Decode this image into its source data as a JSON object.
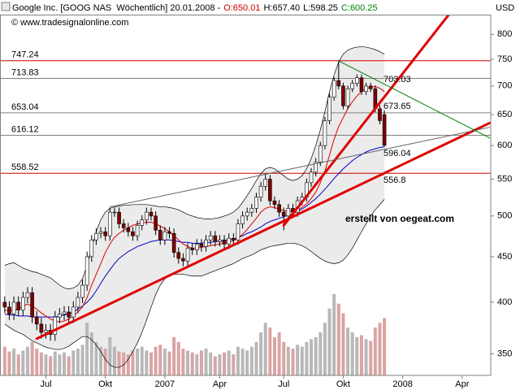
{
  "chart_data": {
    "type": "candlestick",
    "title_parts": [
      {
        "text": "Google Inc. [GOOG NAS  Wöchentlich] 20.01.2008 -",
        "color": "#000000"
      },
      {
        "text": "O:650.01",
        "color": "#cc0000"
      },
      {
        "text": "H:657.40",
        "color": "#000000"
      },
      {
        "text": "L:598.25",
        "color": "#000000"
      },
      {
        "text": "C:600.25",
        "color": "#008000"
      }
    ],
    "copyright": "© www.tradesignalonline.com",
    "y_axis_title": "USD",
    "log_scale": true,
    "ylim": [
      331,
      842
    ],
    "yticks": [
      350,
      400,
      450,
      500,
      550,
      600,
      650,
      700,
      750,
      800
    ],
    "categories": [
      null,
      null,
      null,
      null,
      null,
      null,
      null,
      null,
      null,
      "Jul",
      null,
      null,
      null,
      null,
      null,
      null,
      null,
      null,
      null,
      null,
      null,
      null,
      "Okt",
      null,
      null,
      null,
      null,
      null,
      null,
      null,
      null,
      null,
      null,
      null,
      null,
      "2007",
      null,
      null,
      null,
      null,
      null,
      null,
      null,
      null,
      null,
      null,
      null,
      "Apr",
      null,
      null,
      null,
      null,
      null,
      null,
      null,
      null,
      null,
      null,
      null,
      null,
      null,
      "Jul",
      null,
      null,
      null,
      null,
      null,
      null,
      null,
      null,
      null,
      null,
      null,
      null,
      "Okt",
      null,
      null,
      null,
      null,
      null,
      null,
      null,
      null,
      null,
      null,
      null,
      null,
      "2008",
      null,
      null,
      null,
      null,
      null,
      null,
      null,
      null,
      null,
      null,
      null,
      null,
      "Apr",
      null,
      null,
      null,
      null,
      null
    ],
    "up_color": "#ffffff",
    "down_color": "#800000",
    "open": [
      400,
      395,
      388,
      400,
      392,
      405,
      410,
      385,
      378,
      370,
      372,
      368,
      385,
      388,
      390,
      385,
      395,
      405,
      418,
      450,
      470,
      478,
      480,
      475,
      505,
      505,
      490,
      485,
      480,
      475,
      488,
      495,
      505,
      500,
      482,
      470,
      480,
      478,
      455,
      448,
      445,
      460,
      458,
      465,
      462,
      470,
      475,
      468,
      470,
      465,
      472,
      470,
      490,
      500,
      505,
      510,
      525,
      540,
      550,
      520,
      515,
      505,
      500,
      510,
      505,
      520,
      525,
      545,
      560,
      575,
      600,
      640,
      680,
      710,
      700,
      665,
      695,
      705,
      715,
      690,
      700,
      695,
      660,
      650.01,
      null,
      null,
      null,
      null,
      null,
      null,
      null,
      null,
      null,
      null,
      null,
      null,
      null,
      null,
      null,
      null,
      null,
      null,
      null,
      null,
      null,
      null
    ],
    "high": [
      406,
      401,
      406,
      406,
      411,
      416,
      416,
      391,
      384,
      378,
      378,
      391,
      394,
      396,
      396,
      401,
      411,
      424,
      456,
      476,
      484,
      486,
      486,
      511,
      511,
      511,
      496,
      491,
      486,
      494,
      501,
      511,
      511,
      506,
      488,
      486,
      486,
      484,
      461,
      454,
      466,
      466,
      471,
      471,
      476,
      481,
      481,
      476,
      476,
      478,
      478,
      496,
      506,
      511,
      516,
      531,
      546,
      558,
      556,
      526,
      521,
      511,
      516,
      516,
      526,
      531,
      551,
      566,
      581,
      606,
      646,
      686,
      716,
      747,
      706,
      701,
      711,
      721,
      721,
      706,
      706,
      701,
      666,
      657.4,
      null,
      null,
      null,
      null,
      null,
      null,
      null,
      null,
      null,
      null,
      null,
      null,
      null,
      null,
      null,
      null,
      null,
      null,
      null,
      null,
      null,
      null
    ],
    "low": [
      389,
      382,
      382,
      386,
      386,
      399,
      379,
      372,
      364,
      364,
      362,
      362,
      379,
      382,
      379,
      379,
      389,
      399,
      412,
      444,
      464,
      472,
      469,
      469,
      499,
      484,
      479,
      474,
      469,
      469,
      482,
      489,
      494,
      476,
      464,
      464,
      472,
      449,
      442,
      439,
      439,
      452,
      452,
      456,
      456,
      464,
      462,
      462,
      459,
      459,
      464,
      464,
      484,
      494,
      499,
      504,
      519,
      534,
      514,
      509,
      499,
      482,
      494,
      499,
      499,
      514,
      519,
      539,
      554,
      569,
      594,
      634,
      674,
      694,
      659,
      659,
      689,
      699,
      684,
      684,
      689,
      654,
      634,
      598.25,
      null,
      null,
      null,
      null,
      null,
      null,
      null,
      null,
      null,
      null,
      null,
      null,
      null,
      null,
      null,
      null,
      null,
      null,
      null,
      null,
      null,
      null
    ],
    "close": [
      395,
      388,
      400,
      392,
      405,
      410,
      385,
      378,
      370,
      372,
      368,
      385,
      388,
      390,
      385,
      395,
      405,
      418,
      450,
      470,
      478,
      480,
      475,
      505,
      505,
      490,
      485,
      480,
      475,
      488,
      495,
      505,
      500,
      482,
      470,
      480,
      478,
      455,
      448,
      445,
      460,
      458,
      465,
      462,
      470,
      475,
      468,
      470,
      465,
      472,
      470,
      490,
      500,
      505,
      510,
      525,
      540,
      550,
      520,
      515,
      505,
      500,
      510,
      505,
      520,
      525,
      545,
      560,
      575,
      600,
      640,
      680,
      710,
      700,
      665,
      695,
      705,
      715,
      690,
      700,
      695,
      660,
      640,
      600.25,
      null,
      null,
      null,
      null,
      null,
      null,
      null,
      null,
      null,
      null,
      null,
      null,
      null,
      null,
      null,
      null,
      null,
      null,
      null,
      null,
      null,
      null
    ],
    "volume": [
      30,
      25,
      28,
      22,
      26,
      30,
      35,
      28,
      24,
      22,
      20,
      25,
      22,
      24,
      20,
      26,
      28,
      32,
      55,
      45,
      35,
      30,
      28,
      40,
      30,
      25,
      24,
      22,
      26,
      28,
      30,
      26,
      24,
      30,
      32,
      28,
      25,
      40,
      35,
      28,
      26,
      24,
      22,
      26,
      28,
      24,
      20,
      22,
      24,
      26,
      22,
      30,
      28,
      26,
      30,
      35,
      45,
      55,
      50,
      40,
      45,
      35,
      30,
      28,
      32,
      30,
      35,
      38,
      40,
      45,
      55,
      70,
      85,
      75,
      65,
      50,
      45,
      40,
      42,
      38,
      36,
      50,
      55,
      60,
      null,
      null,
      null,
      null,
      null,
      null,
      null,
      null,
      null,
      null,
      null,
      null,
      null,
      null,
      null,
      null,
      null,
      null,
      null,
      null,
      null,
      null
    ],
    "volume_up_color": "#b8b8b8",
    "volume_down_color": "#dba3a3",
    "band_fill": "#ebebeb",
    "band": [
      {
        "color": "#000000",
        "values": [
          440,
          442,
          443,
          440,
          437,
          435,
          433,
          432,
          430,
          428,
          426,
          422,
          418,
          415,
          414,
          415,
          418,
          425,
          440,
          460,
          480,
          495,
          505,
          510,
          512,
          513,
          514,
          514,
          515,
          515,
          515,
          515,
          514,
          513,
          512,
          512,
          511,
          510,
          508,
          505,
          502,
          500,
          498,
          497,
          496,
          496,
          497,
          498,
          500,
          502,
          505,
          510,
          518,
          527,
          537,
          548,
          558,
          565,
          567,
          565,
          560,
          555,
          550,
          548,
          550,
          555,
          565,
          580,
          600,
          625,
          655,
          690,
          720,
          745,
          760,
          768,
          772,
          774,
          775,
          774,
          772,
          769,
          765,
          760,
          null,
          null,
          null,
          null,
          null,
          null,
          null,
          null,
          null,
          null,
          null,
          null,
          null,
          null,
          null,
          null,
          null,
          null,
          null,
          null,
          null,
          null
        ]
      },
      {
        "color": "#000000",
        "values": [
          378,
          375,
          372,
          370,
          368,
          365,
          362,
          360,
          358,
          356,
          355,
          354,
          354,
          355,
          357,
          360,
          363,
          366,
          366,
          363,
          358,
          352,
          345,
          340,
          338,
          338,
          340,
          345,
          352,
          360,
          370,
          382,
          395,
          408,
          418,
          425,
          428,
          430,
          430,
          430,
          429,
          428,
          428,
          428,
          430,
          432,
          434,
          436,
          438,
          440,
          442,
          445,
          448,
          450,
          452,
          455,
          458,
          460,
          462,
          463,
          464,
          465,
          466,
          466,
          465,
          463,
          460,
          456,
          452,
          448,
          445,
          443,
          442,
          443,
          446,
          452,
          460,
          470,
          480,
          490,
          500,
          508,
          515,
          522,
          null,
          null,
          null,
          null,
          null,
          null,
          null,
          null,
          null,
          null,
          null,
          null,
          null,
          null,
          null,
          null,
          null,
          null,
          null,
          null,
          null,
          null
        ]
      }
    ],
    "averages": [
      {
        "color": "#0000cc",
        "values": [
          388,
          387,
          387,
          386,
          386,
          386,
          385,
          385,
          385,
          385,
          385,
          385,
          386,
          387,
          388,
          390,
          393,
          396,
          400,
          405,
          412,
          420,
          428,
          435,
          442,
          448,
          452,
          456,
          459,
          462,
          464,
          466,
          468,
          469,
          470,
          470,
          470,
          469,
          468,
          467,
          467,
          466,
          466,
          466,
          467,
          467,
          468,
          468,
          469,
          470,
          471,
          473,
          475,
          478,
          480,
          483,
          486,
          490,
          493,
          495,
          497,
          499,
          501,
          503,
          506,
          509,
          513,
          518,
          523,
          529,
          536,
          543,
          551,
          558,
          565,
          571,
          577,
          582,
          586,
          590,
          593,
          595,
          597,
          598,
          null,
          null,
          null,
          null,
          null,
          null,
          null,
          null,
          null,
          null,
          null,
          null,
          null,
          null,
          null,
          null,
          null,
          null,
          null,
          null,
          null,
          null
        ]
      },
      {
        "color": "#dd0000",
        "values": [
          392,
          391,
          392,
          393,
          396,
          398,
          396,
          393,
          389,
          386,
          383,
          381,
          380,
          381,
          383,
          386,
          390,
          395,
          405,
          418,
          430,
          442,
          455,
          465,
          473,
          478,
          482,
          485,
          488,
          490,
          491,
          492,
          492,
          490,
          487,
          484,
          480,
          475,
          470,
          465,
          462,
          460,
          460,
          461,
          462,
          463,
          464,
          465,
          466,
          467,
          469,
          472,
          477,
          483,
          490,
          497,
          505,
          510,
          512,
          511,
          509,
          507,
          506,
          506,
          508,
          511,
          516,
          523,
          532,
          545,
          562,
          585,
          610,
          630,
          645,
          660,
          672,
          682,
          690,
          695,
          698,
          699,
          696,
          690,
          null,
          null,
          null,
          null,
          null,
          null,
          null,
          null,
          null,
          null,
          null,
          null,
          null,
          null,
          null,
          null,
          null,
          null,
          null,
          null,
          null,
          null
        ]
      }
    ],
    "levels": [
      {
        "value": 747.24,
        "color": "#cc0000"
      },
      {
        "value": 713.83,
        "color": "#808080"
      },
      {
        "value": 653.04,
        "color": "#808080"
      },
      {
        "value": 616.12,
        "color": "#808080"
      },
      {
        "value": 558.52,
        "color": "#cc0000"
      }
    ],
    "trendlines": [
      {
        "color": "#e00000",
        "width": 3,
        "from": [
          7,
          364
        ],
        "to": [
          106,
          636
        ]
      },
      {
        "color": "#e00000",
        "width": 3,
        "from": [
          61,
          488
        ],
        "to": [
          100,
          880
        ]
      },
      {
        "color": "#606060",
        "width": 1,
        "from": [
          23,
          512
        ],
        "to": [
          106,
          629
        ]
      },
      {
        "color": "#008000",
        "width": 1,
        "from": [
          73,
          747
        ],
        "to": [
          106,
          612
        ]
      }
    ],
    "annotations": [
      {
        "text": "703.03",
        "color": "#008000"
      },
      {
        "text": "673.65",
        "color": "#cc0000"
      },
      {
        "text": "596.04",
        "color": "#404040"
      },
      {
        "text": "556.8",
        "color": "#cc0000"
      },
      {
        "text": "erstellt von oegeat.com",
        "color": "#1a1aa6"
      }
    ]
  }
}
